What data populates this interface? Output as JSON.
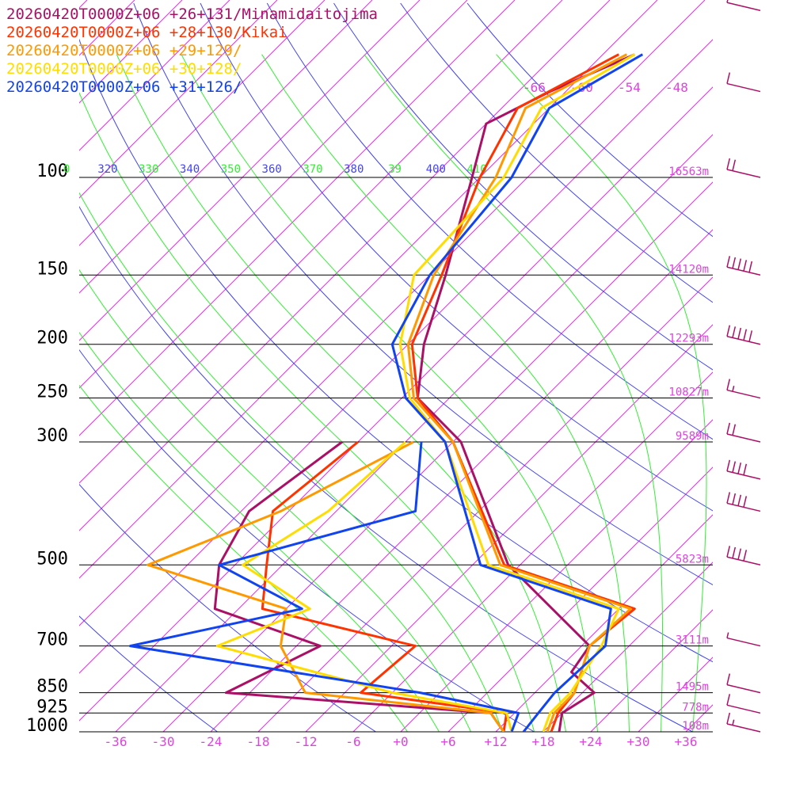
{
  "chart_data": {
    "type": "skew-t log-p sounding",
    "title": "",
    "xlabel": "",
    "ylabel": "",
    "valid_time": "20260420T0000Z+06",
    "colors": {
      "isobar": "#000000",
      "isotherm": "#dd33dd",
      "dry_adiabat": "#4444ee",
      "moist_adiabat": "#33ee33",
      "theta_label_blue": "#4444ee",
      "theta_label_green": "#33ee33",
      "label_magenta": "#dd44dd"
    },
    "pressure_levels_hpa": [
      {
        "p": 100,
        "label": "100",
        "height": "16563m"
      },
      {
        "p": 150,
        "label": "150",
        "height": "14120m"
      },
      {
        "p": 200,
        "label": "200",
        "height": "12293m"
      },
      {
        "p": 250,
        "label": "250",
        "height": "10827m"
      },
      {
        "p": 300,
        "label": "300",
        "height": "9589m"
      },
      {
        "p": 500,
        "label": "500",
        "height": "5823m"
      },
      {
        "p": 700,
        "label": "700",
        "height": "3111m"
      },
      {
        "p": 850,
        "label": "850",
        "height": "1495m"
      },
      {
        "p": 925,
        "label": "925",
        "height": "778m"
      },
      {
        "p": 1000,
        "label": "1000",
        "height": "108m"
      }
    ],
    "temperature_ticks_c": [
      {
        "t": -36,
        "label": "-36"
      },
      {
        "t": -30,
        "label": "-30"
      },
      {
        "t": -24,
        "label": "-24"
      },
      {
        "t": -18,
        "label": "-18"
      },
      {
        "t": -12,
        "label": "-12"
      },
      {
        "t": -6,
        "label": "-6"
      },
      {
        "t": 0,
        "label": "+0"
      },
      {
        "t": 6,
        "label": "+6"
      },
      {
        "t": 12,
        "label": "+12"
      },
      {
        "t": 18,
        "label": "+18"
      },
      {
        "t": 24,
        "label": "+24"
      },
      {
        "t": 30,
        "label": "+30"
      },
      {
        "t": 36,
        "label": "+36"
      }
    ],
    "upper_isotherm_labels": [
      "-66",
      "-60",
      "-54",
      "-48"
    ],
    "theta_labels": [
      {
        "label": "0",
        "theta": 310,
        "kind": "moist"
      },
      {
        "label": "320",
        "theta": 320,
        "kind": "dry"
      },
      {
        "label": "330",
        "theta": 330,
        "kind": "moist"
      },
      {
        "label": "340",
        "theta": 340,
        "kind": "dry"
      },
      {
        "label": "350",
        "theta": 350,
        "kind": "moist"
      },
      {
        "label": "360",
        "theta": 360,
        "kind": "dry"
      },
      {
        "label": "370",
        "theta": 370,
        "kind": "moist"
      },
      {
        "label": "380",
        "theta": 380,
        "kind": "dry"
      },
      {
        "label": "39",
        "theta": 390,
        "kind": "moist"
      },
      {
        "label": "400",
        "theta": 400,
        "kind": "dry"
      },
      {
        "label": "410",
        "theta": 410,
        "kind": "moist"
      }
    ],
    "series": [
      {
        "name": "20260420T0000Z+06 +26+131/Minamidaitojima",
        "color": "#aa1166",
        "temperature": [
          [
            1000,
            20.0
          ],
          [
            925,
            18.0
          ],
          [
            850,
            19.5
          ],
          [
            780,
            14.0
          ],
          [
            700,
            13.0
          ],
          [
            500,
            -7.5
          ],
          [
            300,
            -29.0
          ],
          [
            250,
            -40.0
          ],
          [
            200,
            -46.0
          ],
          [
            150,
            -52.0
          ],
          [
            100,
            -61.0
          ],
          [
            80,
            -66.0
          ],
          [
            70,
            -62.0
          ],
          [
            60,
            -56.0
          ]
        ],
        "dewpoint": [
          [
            1000,
            13.0
          ],
          [
            925,
            9.0
          ],
          [
            850,
            -27.0
          ],
          [
            700,
            -21.0
          ],
          [
            600,
            -39.0
          ],
          [
            500,
            -44.0
          ],
          [
            400,
            -47.0
          ],
          [
            300,
            -44.0
          ]
        ]
      },
      {
        "name": "20260420T0000Z+06 +28+130/Kikai",
        "color": "#ff3300",
        "temperature": [
          [
            1000,
            19.0
          ],
          [
            925,
            17.5
          ],
          [
            850,
            17.0
          ],
          [
            700,
            13.0
          ],
          [
            600,
            14.0
          ],
          [
            500,
            -8.0
          ],
          [
            300,
            -30.0
          ],
          [
            250,
            -40.0
          ],
          [
            200,
            -47.5
          ],
          [
            150,
            -52.5
          ],
          [
            100,
            -60.0
          ],
          [
            75,
            -64.0
          ],
          [
            60,
            -58.0
          ]
        ],
        "dewpoint": [
          [
            1000,
            13.0
          ],
          [
            925,
            11.0
          ],
          [
            850,
            -10.0
          ],
          [
            700,
            -9.0
          ],
          [
            600,
            -33.0
          ],
          [
            500,
            -38.0
          ],
          [
            400,
            -44.0
          ],
          [
            300,
            -42.0
          ]
        ]
      },
      {
        "name": "20260420T0000Z+06 +29+129/",
        "color": "#ff9900",
        "temperature": [
          [
            1000,
            18.5
          ],
          [
            925,
            17.0
          ],
          [
            850,
            17.0
          ],
          [
            700,
            13.0
          ],
          [
            600,
            13.5
          ],
          [
            500,
            -8.5
          ],
          [
            300,
            -30.0
          ],
          [
            250,
            -40.5
          ],
          [
            200,
            -48.0
          ],
          [
            150,
            -53.5
          ],
          [
            100,
            -58.0
          ],
          [
            75,
            -63.0
          ],
          [
            60,
            -57.0
          ]
        ],
        "dewpoint": [
          [
            1000,
            13.0
          ],
          [
            925,
            9.0
          ],
          [
            850,
            -17.0
          ],
          [
            700,
            -26.0
          ],
          [
            600,
            -30.0
          ],
          [
            500,
            -53.0
          ],
          [
            400,
            -43.0
          ],
          [
            300,
            -35.0
          ]
        ]
      },
      {
        "name": "20260420T0000Z+06 +30+128/",
        "color": "#ffdd00",
        "temperature": [
          [
            1000,
            18.0
          ],
          [
            925,
            16.5
          ],
          [
            850,
            16.5
          ],
          [
            700,
            14.5
          ],
          [
            600,
            12.0
          ],
          [
            500,
            -10.0
          ],
          [
            300,
            -31.0
          ],
          [
            250,
            -41.0
          ],
          [
            200,
            -49.0
          ],
          [
            150,
            -56.0
          ],
          [
            100,
            -57.0
          ],
          [
            75,
            -61.0
          ],
          [
            60,
            -56.0
          ]
        ],
        "dewpoint": [
          [
            1000,
            14.0
          ],
          [
            925,
            11.0
          ],
          [
            850,
            -6.0
          ],
          [
            700,
            -34.0
          ],
          [
            600,
            -27.0
          ],
          [
            500,
            -41.0
          ],
          [
            400,
            -37.0
          ],
          [
            300,
            -36.0
          ]
        ]
      },
      {
        "name": "20260420T0000Z+06 +31+126/",
        "color": "#1144ee",
        "temperature": [
          [
            1000,
            15.5
          ],
          [
            925,
            15.0
          ],
          [
            850,
            14.5
          ],
          [
            700,
            15.0
          ],
          [
            600,
            11.0
          ],
          [
            500,
            -11.0
          ],
          [
            300,
            -31.0
          ],
          [
            250,
            -41.5
          ],
          [
            200,
            -50.0
          ],
          [
            150,
            -54.0
          ],
          [
            100,
            -56.0
          ],
          [
            75,
            -60.0
          ],
          [
            60,
            -55.0
          ]
        ],
        "dewpoint": [
          [
            1000,
            14.0
          ],
          [
            925,
            12.5
          ],
          [
            850,
            -2.5
          ],
          [
            700,
            -45.0
          ],
          [
            600,
            -28.0
          ],
          [
            500,
            -44.0
          ],
          [
            400,
            -26.0
          ],
          [
            300,
            -34.0
          ]
        ]
      }
    ],
    "wind_barbs_minamidaitojima": {
      "color": "#aa1166",
      "levels": [
        {
          "p": 1000,
          "speed_kt": 15
        },
        {
          "p": 925,
          "speed_kt": 10
        },
        {
          "p": 850,
          "speed_kt": 10
        },
        {
          "p": 700,
          "speed_kt": 5
        },
        {
          "p": 500,
          "speed_kt": 40
        },
        {
          "p": 400,
          "speed_kt": 40
        },
        {
          "p": 350,
          "speed_kt": 40
        },
        {
          "p": 300,
          "speed_kt": 20
        },
        {
          "p": 250,
          "speed_kt": 15
        },
        {
          "p": 200,
          "speed_kt": 50
        },
        {
          "p": 150,
          "speed_kt": 50
        },
        {
          "p": 100,
          "speed_kt": 20
        },
        {
          "p": 70,
          "speed_kt": 10
        },
        {
          "p": 50,
          "speed_kt": 10
        }
      ]
    }
  }
}
